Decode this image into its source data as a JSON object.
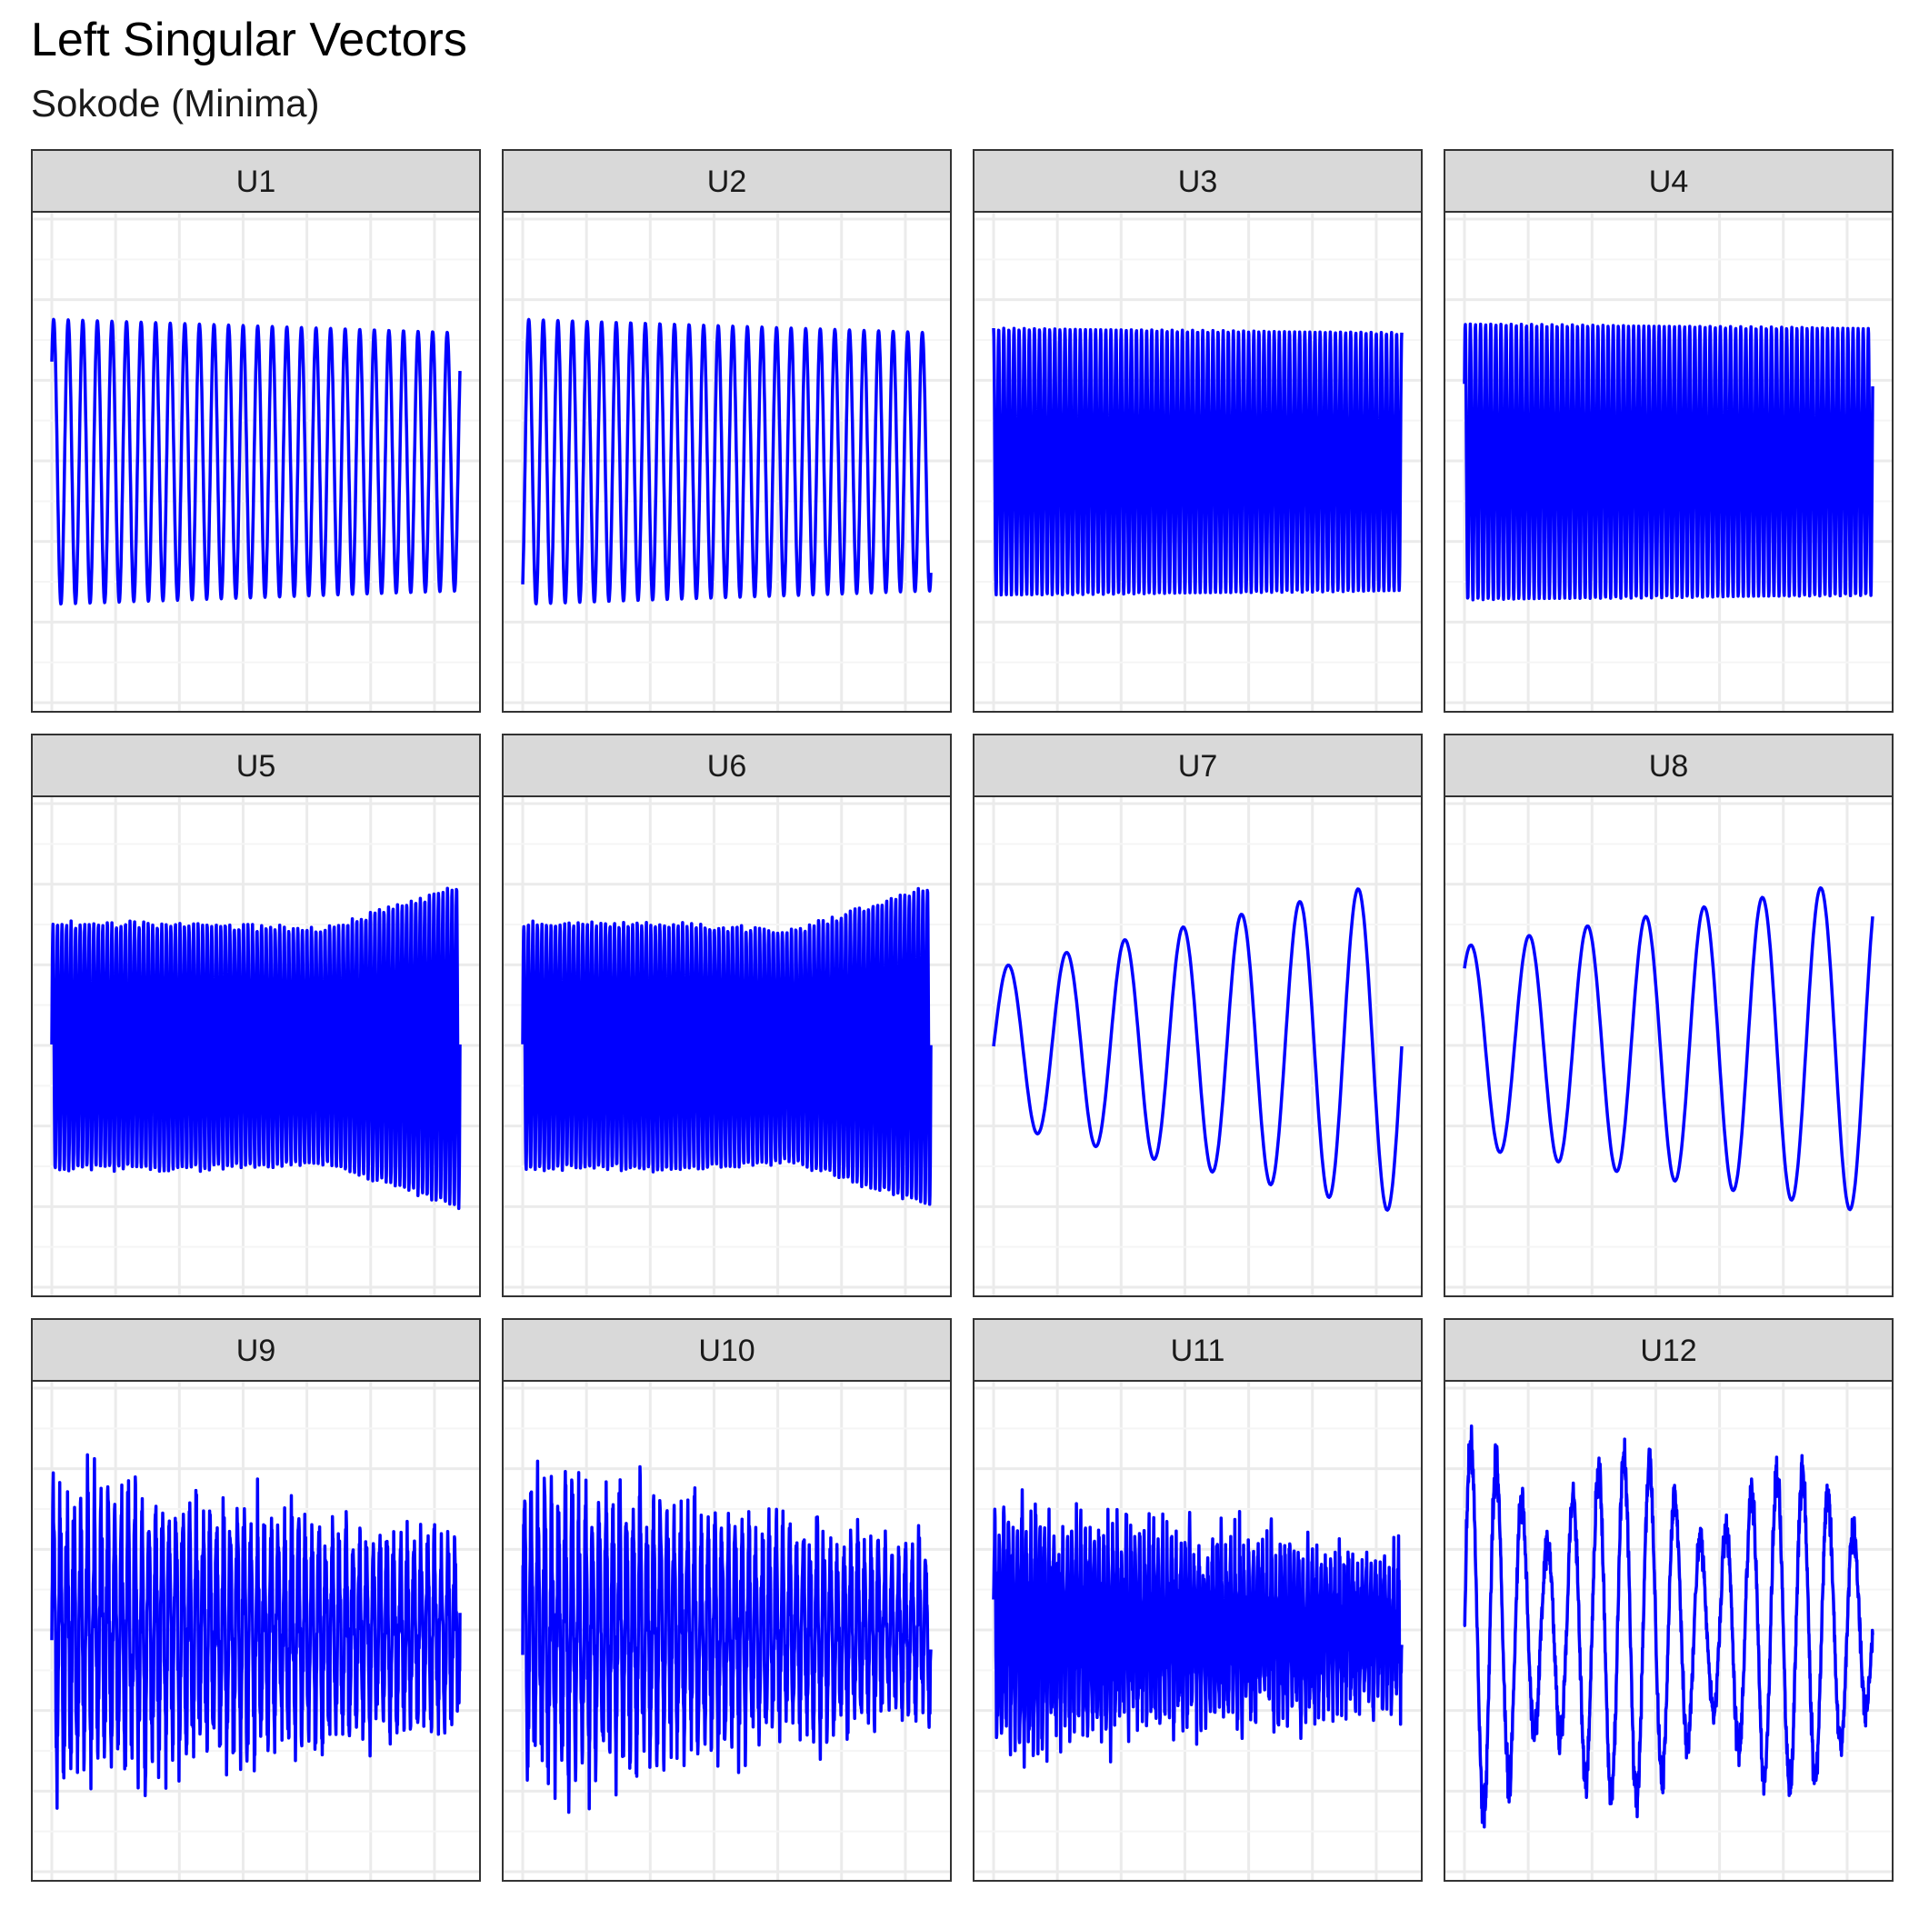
{
  "title": "Left Singular Vectors",
  "subtitle": "Sokode (Minima)",
  "colors": {
    "line": "#0000ff",
    "strip_bg": "#d9d9d9",
    "panel_border": "#333333",
    "grid_major": "#ebebeb",
    "grid_minor": "#f5f5f5"
  },
  "chart_data": {
    "type": "line",
    "facet_layout": "4 columns x 3 rows",
    "grid": true,
    "axes_labels_shown": false,
    "x_range": [
      0,
      336
    ],
    "y_range": [
      -1,
      1
    ],
    "series": [
      {
        "name": "U1",
        "kind": "sine",
        "cycles": 28,
        "start": 0.45,
        "end": 0.4,
        "amp": [
          0.64,
          0.58
        ],
        "mean": 0.0,
        "noise": 0.0
      },
      {
        "name": "U2",
        "kind": "sine",
        "cycles": 28,
        "start": -0.55,
        "end": 0.05,
        "amp": [
          0.64,
          0.58
        ],
        "mean": 0.0,
        "noise": 0.0
      },
      {
        "name": "U3",
        "kind": "sine",
        "cycles": 80,
        "start": 0.6,
        "end": 0.55,
        "amp": [
          0.6,
          0.58
        ],
        "mean": 0.0,
        "noise": 0.0
      },
      {
        "name": "U4",
        "kind": "sine",
        "cycles": 80,
        "start": 0.35,
        "end": -0.2,
        "amp": [
          0.62,
          0.6
        ],
        "mean": 0.0,
        "noise": 0.0
      },
      {
        "name": "U5",
        "kind": "dense",
        "cycles": 90,
        "amp": [
          0.55,
          0.55,
          0.52,
          0.72
        ],
        "mean": 0.0,
        "noise": 0.03
      },
      {
        "name": "U6",
        "kind": "dense",
        "cycles": 90,
        "amp": [
          0.55,
          0.55,
          0.52,
          0.72
        ],
        "mean": 0.0,
        "noise": 0.03
      },
      {
        "name": "U7",
        "kind": "sine",
        "cycles": 7,
        "start": 0.0,
        "end": -0.25,
        "amp": [
          0.35,
          0.75
        ],
        "mean": 0.0,
        "noise": 0.0
      },
      {
        "name": "U8",
        "kind": "sine",
        "cycles": 7,
        "start": 0.35,
        "end": -0.15,
        "amp": [
          0.45,
          0.75
        ],
        "mean": 0.0,
        "noise": 0.0
      },
      {
        "name": "U9",
        "kind": "noisy",
        "cycles": 60,
        "amp": [
          0.7,
          0.45
        ],
        "mean": 0.0,
        "noise": 0.45
      },
      {
        "name": "U10",
        "kind": "noisy",
        "cycles": 60,
        "amp": [
          0.72,
          0.4
        ],
        "mean": 0.0,
        "noise": 0.45
      },
      {
        "name": "U11",
        "kind": "noisy",
        "cycles": 90,
        "amp": [
          0.55,
          0.35
        ],
        "mean": 0.0,
        "noise": 0.55
      },
      {
        "name": "U12",
        "kind": "beat",
        "cycles": 16,
        "amp": [
          0.95,
          0.75
        ],
        "mean": 0.0,
        "noise": 0.1
      }
    ]
  }
}
